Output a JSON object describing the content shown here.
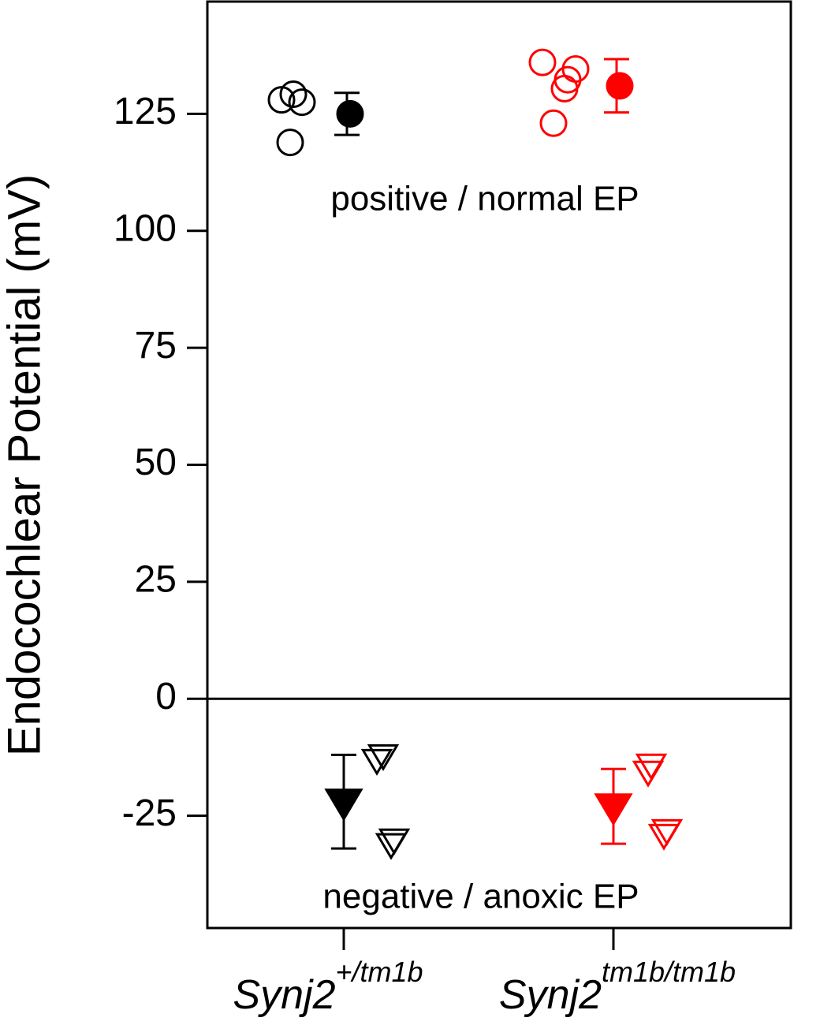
{
  "chart_data": {
    "type": "dot",
    "y_label": "Endocochlear Potential (mV)",
    "categories": [
      {
        "name": "Synj2",
        "superscript": "+/tm1b"
      },
      {
        "name": "Synj2",
        "superscript": "tm1b/tm1b"
      }
    ],
    "colors": [
      "#000000",
      "#ff0000"
    ],
    "ylim": [
      -49,
      149
    ],
    "yticks": [
      -25,
      0,
      25,
      50,
      75,
      100,
      125
    ],
    "zero_line": true,
    "groups": [
      {
        "annotation": "positive / normal EP",
        "marker": "circle",
        "points": [
          [
            128,
            129.2,
            127.5,
            118.9
          ],
          [
            136,
            134.6,
            132.3,
            130.4,
            123
          ]
        ],
        "means": [
          125,
          131
        ],
        "errors": [
          4.5,
          5.7
        ]
      },
      {
        "annotation": "negative / anoxic EP",
        "marker": "triangle-down",
        "points": [
          [
            -13,
            -12,
            -31,
            -30
          ],
          [
            -15.5,
            -14,
            -29,
            -28
          ]
        ],
        "means": [
          -22,
          -23
        ],
        "errors": [
          10,
          8
        ]
      }
    ]
  }
}
